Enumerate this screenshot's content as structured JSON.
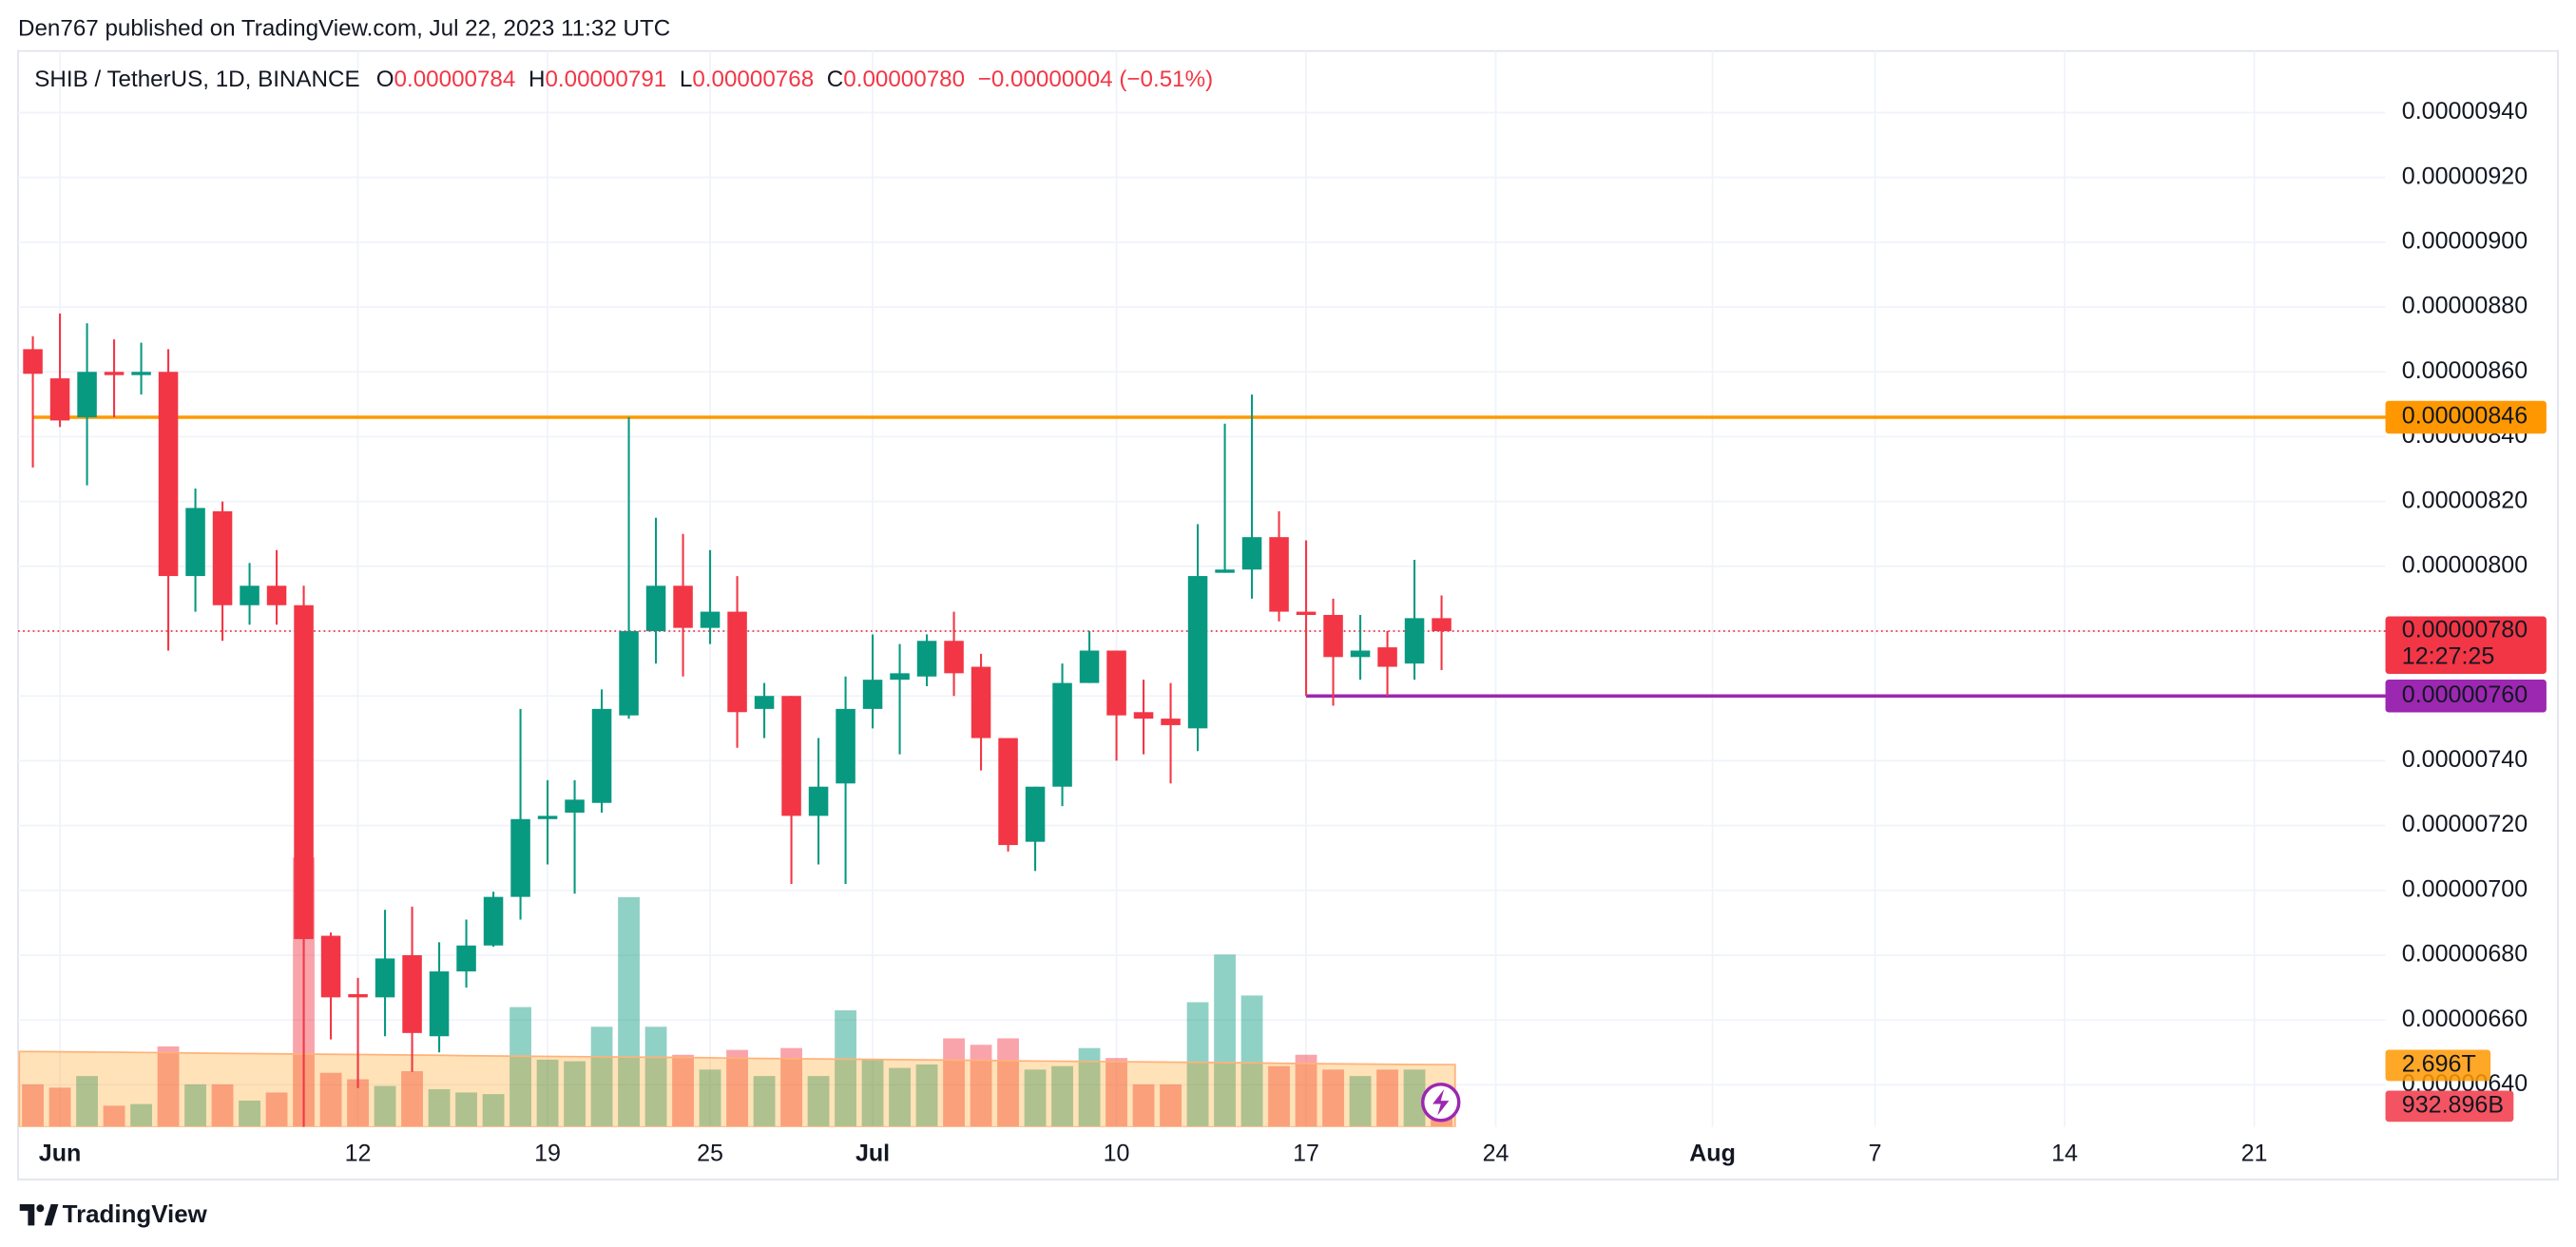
{
  "header": {
    "text": "Den767 published on TradingView.com, Jul 22, 2023 11:32 UTC"
  },
  "legend": {
    "symbol": "SHIB / TetherUS, 1D, BINANCE",
    "items": [
      {
        "key": "O",
        "value": "0.00000784"
      },
      {
        "key": "H",
        "value": "0.00000791"
      },
      {
        "key": "L",
        "value": "0.00000768"
      },
      {
        "key": "C",
        "value": "0.00000780"
      }
    ],
    "change": "−0.00000004 (−0.51%)"
  },
  "chart_data": {
    "type": "candlestick",
    "up_color": "#089981",
    "down_color": "#f23645",
    "grid": true,
    "categories": [
      null,
      "Jun",
      null,
      null,
      null,
      null,
      null,
      null,
      null,
      null,
      null,
      null,
      "12",
      null,
      null,
      null,
      null,
      null,
      null,
      "19",
      null,
      null,
      null,
      null,
      null,
      "25",
      null,
      null,
      null,
      null,
      null,
      "Jul",
      null,
      null,
      null,
      null,
      null,
      null,
      null,
      null,
      "10",
      null,
      null,
      null,
      null,
      null,
      null,
      "17",
      null,
      null,
      null,
      null,
      null,
      null,
      "24",
      null,
      null,
      null,
      null,
      null,
      null,
      null,
      "Aug",
      null,
      null,
      null,
      null,
      null,
      "7",
      null,
      null,
      null,
      null,
      null,
      null,
      "14",
      null,
      null,
      null,
      null,
      null,
      null,
      "21",
      null,
      null,
      null,
      null
    ],
    "open": [
      8.67e-06,
      8.58e-06,
      8.46e-06,
      8.6e-06,
      8.59e-06,
      8.6e-06,
      7.97e-06,
      8.17e-06,
      7.88e-06,
      7.94e-06,
      7.88e-06,
      6.86e-06,
      6.68e-06,
      6.67e-06,
      6.8e-06,
      6.55e-06,
      6.75e-06,
      6.83e-06,
      6.98e-06,
      7.22e-06,
      7.24e-06,
      7.27e-06,
      7.54e-06,
      7.8e-06,
      7.94e-06,
      7.81e-06,
      7.86e-06,
      7.56e-06,
      7.6e-06,
      7.23e-06,
      7.33e-06,
      7.56e-06,
      7.65e-06,
      7.66e-06,
      7.77e-06,
      7.69e-06,
      7.47e-06,
      7.15e-06,
      7.32e-06,
      7.64e-06,
      7.74e-06,
      7.55e-06,
      7.53e-06,
      7.5e-06,
      7.98e-06,
      7.99e-06,
      8.09e-06,
      7.86e-06,
      7.85e-06,
      7.72e-06,
      7.75e-06,
      7.7e-06,
      7.84e-06,
      null,
      null,
      null,
      null,
      null,
      null,
      null,
      null,
      null,
      null,
      null,
      null,
      null,
      null,
      null,
      null,
      null,
      null,
      null,
      null,
      null,
      null,
      null,
      null,
      null,
      null,
      null,
      null,
      null,
      null,
      null,
      null,
      null,
      null
    ],
    "high": [
      8.71e-06,
      8.78e-06,
      8.75e-06,
      8.7e-06,
      8.69e-06,
      8.67e-06,
      8.24e-06,
      8.2e-06,
      8.01e-06,
      8.05e-06,
      7.94e-06,
      6.87e-06,
      6.73e-06,
      6.94e-06,
      6.95e-06,
      6.84e-06,
      6.91e-06,
      6.996e-06,
      7.56e-06,
      7.34e-06,
      7.34e-06,
      7.62e-06,
      8.46e-06,
      8.15e-06,
      8.1e-06,
      8.05e-06,
      7.97e-06,
      7.64e-06,
      7.6e-06,
      7.47e-06,
      7.66e-06,
      7.79e-06,
      7.76e-06,
      7.79e-06,
      7.86e-06,
      7.73e-06,
      7.47e-06,
      7.32e-06,
      7.7e-06,
      7.8e-06,
      7.74e-06,
      7.65e-06,
      7.64e-06,
      8.13e-06,
      8.44e-06,
      8.53e-06,
      8.17e-06,
      8.08e-06,
      7.9e-06,
      7.85e-06,
      7.8e-06,
      8.02e-06,
      7.91e-06,
      null,
      null,
      null,
      null,
      null,
      null,
      null,
      null,
      null,
      null,
      null,
      null,
      null,
      null,
      null,
      null,
      null,
      null,
      null,
      null,
      null,
      null,
      null,
      null,
      null,
      null,
      null,
      null,
      null,
      null,
      null,
      null,
      null,
      null
    ],
    "low": [
      8.305e-06,
      8.43e-06,
      8.25e-06,
      8.46e-06,
      8.53e-06,
      7.74e-06,
      7.86e-06,
      7.77e-06,
      7.82e-06,
      7.82e-06,
      6.27e-06,
      6.54e-06,
      6.39e-06,
      6.55e-06,
      6.44e-06,
      6.5e-06,
      6.7e-06,
      6.826e-06,
      6.91e-06,
      7.08e-06,
      6.99e-06,
      7.24e-06,
      7.53e-06,
      7.7e-06,
      7.66e-06,
      7.76e-06,
      7.44e-06,
      7.47e-06,
      7.02e-06,
      7.08e-06,
      7.02e-06,
      7.5e-06,
      7.42e-06,
      7.63e-06,
      7.6e-06,
      7.37e-06,
      7.12e-06,
      7.06e-06,
      7.26e-06,
      7.64e-06,
      7.4e-06,
      7.42e-06,
      7.33e-06,
      7.43e-06,
      7.98e-06,
      7.9e-06,
      7.83e-06,
      7.6e-06,
      7.57e-06,
      7.65e-06,
      7.6e-06,
      7.65e-06,
      7.68e-06,
      null,
      null,
      null,
      null,
      null,
      null,
      null,
      null,
      null,
      null,
      null,
      null,
      null,
      null,
      null,
      null,
      null,
      null,
      null,
      null,
      null,
      null,
      null,
      null,
      null,
      null,
      null,
      null,
      null,
      null,
      null,
      null,
      null,
      null
    ],
    "close": [
      8.594e-06,
      8.45e-06,
      8.6e-06,
      8.59e-06,
      8.6e-06,
      7.97e-06,
      8.18e-06,
      7.88e-06,
      7.94e-06,
      7.88e-06,
      6.85e-06,
      6.67e-06,
      6.67e-06,
      6.79e-06,
      6.56e-06,
      6.75e-06,
      6.83e-06,
      6.98e-06,
      7.22e-06,
      7.23e-06,
      7.28e-06,
      7.56e-06,
      7.8e-06,
      7.94e-06,
      7.81e-06,
      7.86e-06,
      7.55e-06,
      7.6e-06,
      7.23e-06,
      7.32e-06,
      7.56e-06,
      7.65e-06,
      7.67e-06,
      7.77e-06,
      7.67e-06,
      7.47e-06,
      7.14e-06,
      7.32e-06,
      7.64e-06,
      7.74e-06,
      7.54e-06,
      7.53e-06,
      7.51e-06,
      7.97e-06,
      7.99e-06,
      8.09e-06,
      7.86e-06,
      7.85e-06,
      7.72e-06,
      7.74e-06,
      7.69e-06,
      7.84e-06,
      7.8e-06,
      null,
      null,
      null,
      null,
      null,
      null,
      null,
      null,
      null,
      null,
      null,
      null,
      null,
      null,
      null,
      null,
      null,
      null,
      null,
      null,
      null,
      null,
      null,
      null,
      null,
      null,
      null,
      null,
      null,
      null,
      null,
      null,
      null,
      null
    ],
    "volume": [
      1840000000000.0,
      1700000000000.0,
      2200000000000.0,
      920000000000.0,
      990000000000.0,
      3480000000000.0,
      1840000000000.0,
      1840000000000.0,
      1140000000000.0,
      1490000000000.0,
      11640000000000.0,
      2340000000000.0,
      2060000000000.0,
      1770000000000.0,
      2410000000000.0,
      1630000000000.0,
      1490000000000.0,
      1420000000000.0,
      5180000000000.0,
      2910000000000.0,
      2840000000000.0,
      4330000000000.0,
      9930000000000.0,
      4330000000000.0,
      3120000000000.0,
      2480000000000.0,
      3330000000000.0,
      2200000000000.0,
      3410000000000.0,
      2200000000000.0,
      5040000000000.0,
      2910000000000.0,
      2550000000000.0,
      2700000000000.0,
      3830000000000.0,
      3550000000000.0,
      3830000000000.0,
      2480000000000.0,
      2630000000000.0,
      3410000000000.0,
      2980000000000.0,
      1840000000000.0,
      1840000000000.0,
      5390000000000.0,
      7450000000000.0,
      5680000000000.0,
      2630000000000.0,
      3120000000000.0,
      2480000000000.0,
      2200000000000.0,
      2480000000000.0,
      2480000000000.0,
      932896000000,
      null,
      null,
      null,
      null,
      null,
      null,
      null,
      null,
      null,
      null,
      null,
      null,
      null,
      null,
      null,
      null,
      null,
      null,
      null,
      null,
      null,
      null,
      null,
      null,
      null,
      null,
      null,
      null,
      null,
      null,
      null,
      null,
      null,
      null
    ],
    "volume_ma": [
      3260000000000.0,
      3250000000000.0,
      3240000000000.0,
      3230000000000.0,
      3220000000000.0,
      3210000000000.0,
      3190000000000.0,
      3180000000000.0,
      3170000000000.0,
      3160000000000.0,
      3150000000000.0,
      3140000000000.0,
      3130000000000.0,
      3120000000000.0,
      3110000000000.0,
      3100000000000.0,
      3080000000000.0,
      3070000000000.0,
      3060000000000.0,
      3050000000000.0,
      3040000000000.0,
      3030000000000.0,
      3020000000000.0,
      3010000000000.0,
      3000000000000.0,
      2990000000000.0,
      2970000000000.0,
      2960000000000.0,
      2950000000000.0,
      2940000000000.0,
      2930000000000.0,
      2920000000000.0,
      2910000000000.0,
      2900000000000.0,
      2890000000000.0,
      2880000000000.0,
      2860000000000.0,
      2850000000000.0,
      2840000000000.0,
      2830000000000.0,
      2820000000000.0,
      2810000000000.0,
      2800000000000.0,
      2790000000000.0,
      2780000000000.0,
      2770000000000.0,
      2750000000000.0,
      2740000000000.0,
      2730000000000.0,
      2720000000000.0,
      2710000000000.0,
      2700000000000.0,
      2696000000000,
      null,
      null,
      null,
      null,
      null,
      null,
      null,
      null,
      null,
      null,
      null,
      null,
      null,
      null,
      null,
      null,
      null,
      null,
      null,
      null,
      null,
      null,
      null,
      null,
      null,
      null,
      null,
      null,
      null,
      null,
      null,
      null,
      null,
      null
    ],
    "volume_label": "932.896B",
    "volume_ma_label": "2.696T",
    "ylim": [
      6.27e-06,
      9.59e-06
    ],
    "yticks": [
      {
        "value": 9.4e-06,
        "label": "0.00000940"
      },
      {
        "value": 9.2e-06,
        "label": "0.00000920"
      },
      {
        "value": 9e-06,
        "label": "0.00000900"
      },
      {
        "value": 8.8e-06,
        "label": "0.00000880"
      },
      {
        "value": 8.6e-06,
        "label": "0.00000860"
      },
      {
        "value": 8.4e-06,
        "label": "0.00000840"
      },
      {
        "value": 8.2e-06,
        "label": "0.00000820"
      },
      {
        "value": 8e-06,
        "label": "0.00000800"
      },
      {
        "value": 7.8e-06,
        "label": "0.00000780"
      },
      {
        "value": 7.6e-06,
        "label": "0.00000760"
      },
      {
        "value": 7.4e-06,
        "label": "0.00000740"
      },
      {
        "value": 7.2e-06,
        "label": "0.00000720"
      },
      {
        "value": 7e-06,
        "label": "0.00000700"
      },
      {
        "value": 6.8e-06,
        "label": "0.00000680"
      },
      {
        "value": 6.6e-06,
        "label": "0.00000660"
      },
      {
        "value": 6.4e-06,
        "label": "0.00000640"
      }
    ],
    "volume_ylim": [
      0,
      13200000000000.0
    ],
    "levels": [
      {
        "value": 8.46e-06,
        "label": "0.00000846",
        "color": "#ff9800",
        "start_index": 0
      },
      {
        "value": 7.6e-06,
        "label": "0.00000760",
        "color": "#9c27b0",
        "start_index": 47
      }
    ],
    "last_price": {
      "value": 7.8e-06,
      "label": "0.00000780",
      "countdown": "12:27:25"
    }
  },
  "footer": {
    "brand": "TradingView"
  }
}
